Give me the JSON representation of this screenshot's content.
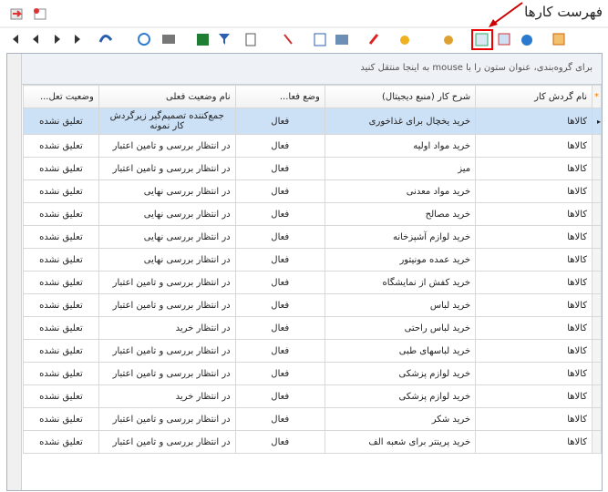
{
  "title": "فهرست کارها",
  "group_panel": "برای گروه‌بندی، عنوان ستون را با mouse به اینجا منتقل کنید",
  "table": {
    "columns": [
      "نام گردش کار",
      "شرح کار (منبع دیجیتال)",
      "وضع فعا...",
      "نام وضعیت فعلی",
      "وضعیت تعل..."
    ],
    "rows": [
      [
        "کالاها",
        "خرید یخچال برای غذاخوری",
        "فعال",
        "جمع‌کننده تصمیم‌گیر زیرگردش کار نمونه",
        "تعلیق نشده"
      ],
      [
        "کالاها",
        "خرید مواد اولیه",
        "فعال",
        "در انتظار بررسی و تامین اعتبار",
        "تعلیق نشده"
      ],
      [
        "کالاها",
        "میز",
        "فعال",
        "در انتظار بررسی و تامین اعتبار",
        "تعلیق نشده"
      ],
      [
        "کالاها",
        "خرید مواد معدنی",
        "فعال",
        "در انتظار بررسی نهایی",
        "تعلیق نشده"
      ],
      [
        "کالاها",
        "خرید مصالح",
        "فعال",
        "در انتظار بررسی نهایی",
        "تعلیق نشده"
      ],
      [
        "کالاها",
        "خرید لوازم آشپزخانه",
        "فعال",
        "در انتظار بررسی نهایی",
        "تعلیق نشده"
      ],
      [
        "کالاها",
        "خرید عمده مونیتور",
        "فعال",
        "در انتظار بررسی نهایی",
        "تعلیق نشده"
      ],
      [
        "کالاها",
        "خرید کفش از نمایشگاه",
        "فعال",
        "در انتظار بررسی و تامین اعتبار",
        "تعلیق نشده"
      ],
      [
        "کالاها",
        "خرید لباس",
        "فعال",
        "در انتظار بررسی و تامین اعتبار",
        "تعلیق نشده"
      ],
      [
        "کالاها",
        "خرید لباس راحتی",
        "فعال",
        "در انتظار خرید",
        "تعلیق نشده"
      ],
      [
        "کالاها",
        "خرید لباسهای طبی",
        "فعال",
        "در انتظار بررسی و تامین اعتبار",
        "تعلیق نشده"
      ],
      [
        "کالاها",
        "خرید لوازم پزشکی",
        "فعال",
        "در انتظار بررسی و تامین اعتبار",
        "تعلیق نشده"
      ],
      [
        "کالاها",
        "خرید لوازم پزشکی",
        "فعال",
        "در انتظار خرید",
        "تعلیق نشده"
      ],
      [
        "کالاها",
        "خرید شکر",
        "فعال",
        "در انتظار بررسی و تامین اعتبار",
        "تعلیق نشده"
      ],
      [
        "کالاها",
        "خرید پرینتر برای شعبه الف",
        "فعال",
        "در انتظار بررسی و تامین اعتبار",
        "تعلیق نشده"
      ]
    ]
  }
}
